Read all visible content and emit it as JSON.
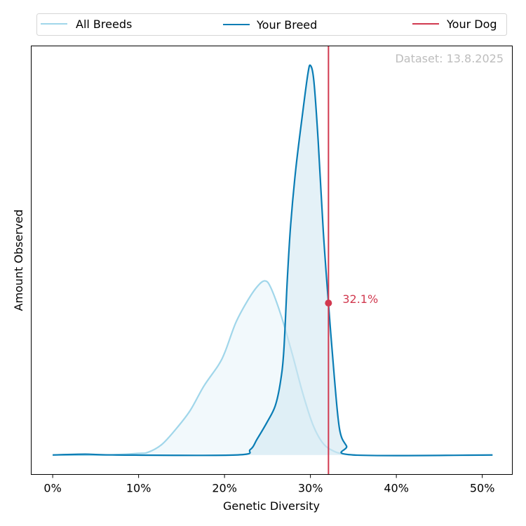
{
  "chart_data": {
    "type": "area",
    "xlabel": "Genetic Diversity",
    "ylabel": "Amount Observed",
    "xlim": [
      -2.5,
      53.5
    ],
    "ylim": [
      -0.05,
      1.05
    ],
    "x_ticks": [
      0,
      10,
      20,
      30,
      40,
      50
    ],
    "x_tick_labels": [
      "0%",
      "10%",
      "20%",
      "30%",
      "40%",
      "50%"
    ],
    "y_ticks_visible": false,
    "grid": false,
    "legend": {
      "placement": "top, outside",
      "entries": [
        "All Breeds",
        "Your Breed",
        "Your Dog"
      ]
    },
    "annotation": "Dataset: 13.8.2025",
    "series": [
      {
        "name": "All Breeds",
        "color": "#a0d6ea",
        "fill": "#f2f9fc",
        "x": [
          0,
          6.2,
          9.9,
          11.1,
          12.7,
          14.4,
          16.0,
          17.6,
          19.3,
          20.1,
          21.3,
          22.6,
          23.8,
          24.7,
          25.4,
          26.6,
          27.9,
          29.1,
          30.3,
          31.5,
          32.8,
          34.0,
          35.2
        ],
        "y": [
          0,
          0,
          0.004,
          0.007,
          0.027,
          0.068,
          0.114,
          0.177,
          0.231,
          0.267,
          0.339,
          0.393,
          0.432,
          0.447,
          0.429,
          0.357,
          0.258,
          0.159,
          0.077,
          0.029,
          0.009,
          0.002,
          0
        ]
      },
      {
        "name": "Your Breed",
        "color": "#0a7db5",
        "fill": "#d2e8f2",
        "x": [
          0,
          3.8,
          7.4,
          21.3,
          23.0,
          23.8,
          25.0,
          25.9,
          26.5,
          26.9,
          27.3,
          27.7,
          28.3,
          29.1,
          29.7,
          30.0,
          30.4,
          30.9,
          31.5,
          32.1,
          32.8,
          33.4,
          34.2,
          35.0,
          51.2
        ],
        "y": [
          0,
          0.002,
          0,
          0,
          0.014,
          0.041,
          0.086,
          0.126,
          0.186,
          0.267,
          0.447,
          0.591,
          0.735,
          0.879,
          0.978,
          1.0,
          0.96,
          0.807,
          0.573,
          0.389,
          0.195,
          0.065,
          0.023,
          0,
          0
        ]
      }
    ],
    "marker": {
      "name": "Your Dog",
      "color": "#d1394f",
      "x": 32.1,
      "y": 0.39,
      "label": "32.1%"
    }
  }
}
